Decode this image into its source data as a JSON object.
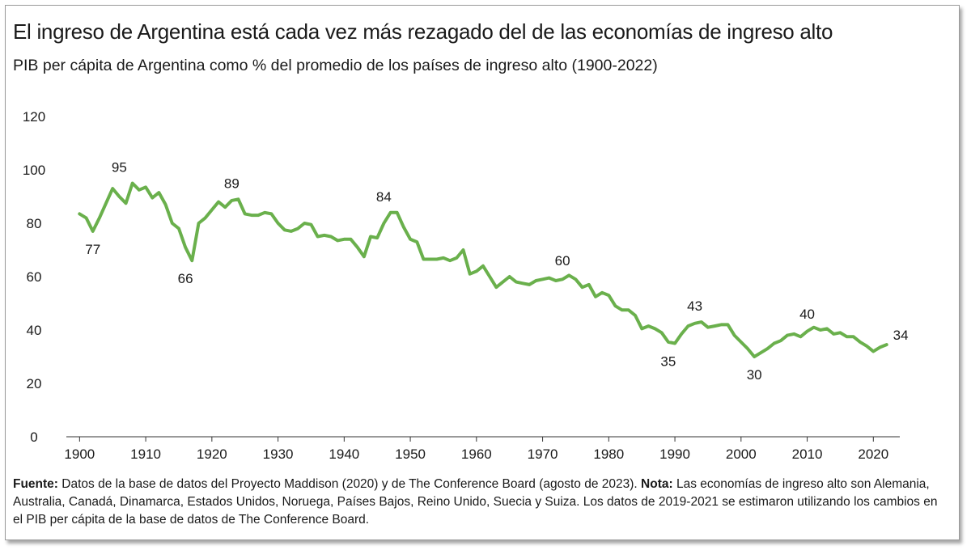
{
  "title": "El ingreso de Argentina está cada vez más rezagado del de las economías de ingreso alto",
  "subtitle": "PIB per cápita de Argentina como % del promedio de los países de ingreso alto (1900-2022)",
  "source": {
    "fuente_label": "Fuente:",
    "fuente_text": " Datos de la base de datos del Proyecto Maddison (2020) y de The Conference Board (agosto de 2023). ",
    "nota_label": "Nota:",
    "nota_text": " Las economías de ingreso alto son Alemania, Australia, Canadá, Dinamarca, Estados Unidos, Noruega, Países Bajos, Reino Unido, Suecia y Suiza. Los datos de 2019-2021 se estimaron utilizando los cambios en el PIB per cápita de la base de datos de The Conference Board."
  },
  "chart_data": {
    "type": "line",
    "xlim": [
      1898,
      2024
    ],
    "ylim": [
      0,
      120
    ],
    "x_ticks": [
      1900,
      1910,
      1920,
      1930,
      1940,
      1950,
      1960,
      1970,
      1980,
      1990,
      2000,
      2010,
      2020
    ],
    "y_ticks": [
      0,
      20,
      40,
      60,
      80,
      100,
      120
    ],
    "grid": false,
    "legend": "none",
    "line_color": "#6ab04c",
    "series": [
      {
        "x": [
          1900,
          1901,
          1902,
          1903,
          1904,
          1905,
          1906,
          1907,
          1908,
          1909,
          1910,
          1911,
          1912,
          1913,
          1914,
          1915,
          1916,
          1917,
          1918,
          1919,
          1920,
          1921,
          1922,
          1923,
          1924,
          1925,
          1926,
          1927,
          1928,
          1929,
          1930,
          1931,
          1932,
          1933,
          1934,
          1935,
          1936,
          1937,
          1938,
          1939,
          1940,
          1941,
          1942,
          1943,
          1944,
          1945,
          1946,
          1947,
          1948,
          1949,
          1950,
          1951,
          1952,
          1953,
          1954,
          1955,
          1956,
          1957,
          1958,
          1959,
          1960,
          1961,
          1962,
          1963,
          1964,
          1965,
          1966,
          1967,
          1968,
          1969,
          1970,
          1971,
          1972,
          1973,
          1974,
          1975,
          1976,
          1977,
          1978,
          1979,
          1980,
          1981,
          1982,
          1983,
          1984,
          1985,
          1986,
          1987,
          1988,
          1989,
          1990,
          1991,
          1992,
          1993,
          1994,
          1995,
          1996,
          1997,
          1998,
          1999,
          2000,
          2001,
          2002,
          2003,
          2004,
          2005,
          2006,
          2007,
          2008,
          2009,
          2010,
          2011,
          2012,
          2013,
          2014,
          2015,
          2016,
          2017,
          2018,
          2019,
          2020,
          2021,
          2022
        ],
        "values": [
          83.5,
          82,
          77,
          82,
          87.5,
          93,
          90,
          87.5,
          95,
          92.5,
          93.5,
          89.5,
          91.5,
          87,
          80,
          78,
          71,
          66,
          80,
          82,
          85,
          88,
          86,
          88.5,
          89,
          83.5,
          83,
          83,
          84,
          83.5,
          80,
          77.5,
          77,
          78,
          80,
          79.5,
          75,
          75.5,
          75,
          73.5,
          74,
          74,
          71,
          67.5,
          75,
          74.5,
          80,
          84,
          84,
          78.5,
          74,
          73,
          66.5,
          66.5,
          66.5,
          67,
          66,
          67,
          70,
          61,
          62,
          64,
          60,
          56,
          58,
          60,
          58,
          57.5,
          57,
          58.5,
          59,
          59.5,
          58.5,
          59,
          60.5,
          59,
          56,
          57,
          52.5,
          54,
          53,
          49,
          47.5,
          47.5,
          45.5,
          40.5,
          41.5,
          40.5,
          39,
          35.5,
          35,
          38.5,
          41.5,
          42.5,
          43,
          41,
          41.5,
          42,
          42,
          38,
          35.5,
          33,
          30,
          31.5,
          33,
          35,
          36,
          38,
          38.5,
          37.5,
          39.5,
          41,
          40,
          40.5,
          38.5,
          39,
          37.5,
          37.5,
          35.5,
          34,
          32,
          33.5,
          34.5
        ]
      }
    ],
    "annotations": [
      {
        "x": 1902,
        "y": 77,
        "label": "77",
        "pos": "below"
      },
      {
        "x": 1906,
        "y": 95,
        "label": "95",
        "pos": "above"
      },
      {
        "x": 1916,
        "y": 66,
        "label": "66",
        "pos": "below"
      },
      {
        "x": 1923,
        "y": 89,
        "label": "89",
        "pos": "above"
      },
      {
        "x": 1946,
        "y": 84,
        "label": "84",
        "pos": "above"
      },
      {
        "x": 1973,
        "y": 60,
        "label": "60",
        "pos": "above"
      },
      {
        "x": 1989,
        "y": 35,
        "label": "35",
        "pos": "below"
      },
      {
        "x": 1993,
        "y": 43,
        "label": "43",
        "pos": "above"
      },
      {
        "x": 2002,
        "y": 30,
        "label": "30",
        "pos": "below"
      },
      {
        "x": 2010,
        "y": 40,
        "label": "40",
        "pos": "above"
      },
      {
        "x": 2022,
        "y": 34,
        "label": "34",
        "pos": "right"
      }
    ]
  }
}
